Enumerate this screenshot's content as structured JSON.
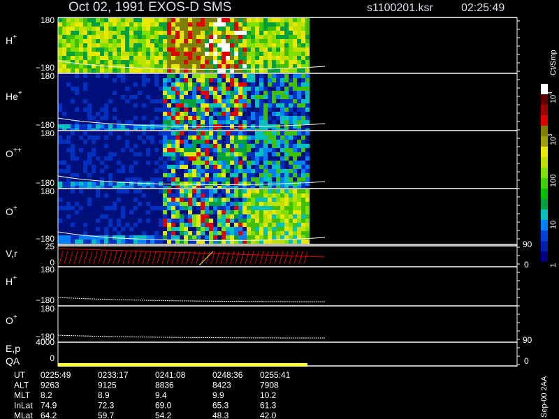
{
  "header": {
    "title": "Oct 02, 1991   EXOS-D SMS",
    "file": "s1100201.ksr",
    "time": "02:25:49"
  },
  "panels": [
    {
      "label": "H",
      "sup": "+",
      "top": "180",
      "bottom": "−180"
    },
    {
      "label": "He",
      "sup": "+",
      "top": "180",
      "bottom": "−180"
    },
    {
      "label": "O",
      "sup": "++",
      "top": "180",
      "bottom": "−180"
    },
    {
      "label": "O",
      "sup": "+",
      "top": "180",
      "bottom": "−180"
    }
  ],
  "rate_panel": {
    "label": "V,r",
    "left_ticks": [
      "25",
      "0"
    ],
    "right_ticks": [
      "90",
      "0"
    ]
  },
  "pitch_panels": [
    {
      "label": "H",
      "sup": "+",
      "top": "180",
      "bottom": "−180"
    },
    {
      "label": "O",
      "sup": "+",
      "top": "180",
      "bottom": "−180"
    }
  ],
  "ep_panel": {
    "label": "E,p",
    "left_tick": "4000",
    "right_tick": "90"
  },
  "qa_panel": {
    "label": "QA",
    "left_tick": "0",
    "right_tick": "0"
  },
  "colorbar": {
    "unit": "Ct/Smp",
    "labels": [
      {
        "base": "10",
        "sup": "4"
      },
      {
        "base": "10",
        "sup": "3"
      },
      {
        "base": "100",
        "sup": ""
      },
      {
        "base": "10",
        "sup": ""
      },
      {
        "base": "1",
        "sup": ""
      }
    ]
  },
  "stamp": "Sep-00  2AA",
  "footer": {
    "rows": [
      [
        "UT",
        "0225:49",
        "0233:17",
        "0241:08",
        "0248:36",
        "0255:41"
      ],
      [
        "ALT",
        "9263",
        "9125",
        "8836",
        "8423",
        "7908"
      ],
      [
        "MLT",
        "8.2",
        "8.9",
        "9.4",
        "9.9",
        "10.2"
      ],
      [
        "InLat",
        "74.9",
        "72.3",
        "69.0",
        "65.3",
        "61.3"
      ],
      [
        "MLat",
        "64.2",
        "59.7",
        "54.2",
        "48.3",
        "42.0"
      ]
    ]
  }
}
